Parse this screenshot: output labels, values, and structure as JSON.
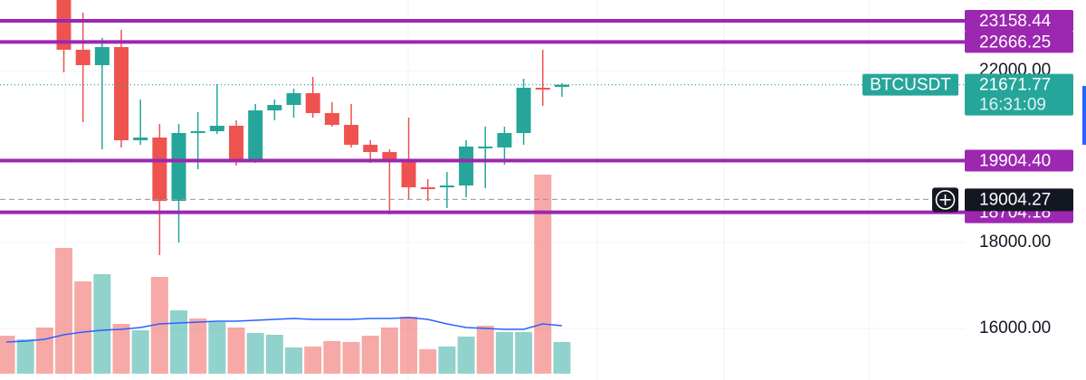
{
  "chart_data": {
    "type": "candlestick",
    "symbol": "BTCUSDT",
    "last_price": 21671.77,
    "countdown": "16:31:09",
    "crosshair_price": 19004.27,
    "categories": [
      null,
      null,
      null,
      null,
      null,
      null,
      null,
      null,
      null,
      null,
      null,
      null,
      null,
      null,
      null,
      null,
      null,
      null,
      null,
      null,
      null,
      null,
      null,
      null,
      null,
      null,
      null,
      null,
      null,
      null
    ],
    "open": [
      null,
      null,
      null,
      23852,
      22484,
      22126,
      22547,
      20379,
      20442,
      18968,
      20547,
      20589,
      20716,
      19916,
      21074,
      21200,
      21474,
      21011,
      20737,
      20274,
      20105,
      19916,
      19284,
      19284,
      19326,
      20210,
      20210,
      20547,
      21600,
      21620
    ],
    "high": [
      null,
      null,
      null,
      23900,
      23347,
      22758,
      22947,
      21326,
      20758,
      20758,
      21032,
      21684,
      20842,
      21221,
      21326,
      21579,
      21853,
      21263,
      21221,
      20379,
      20168,
      20905,
      19474,
      19642,
      20379,
      20695,
      20695,
      21810,
      22484,
      21705
    ],
    "low": [
      null,
      null,
      null,
      21958,
      20800,
      20168,
      20210,
      20274,
      17705,
      18000,
      19705,
      20526,
      19789,
      19853,
      20842,
      20905,
      20905,
      20695,
      20210,
      19853,
      18653,
      19011,
      18968,
      18800,
      19053,
      19263,
      19811,
      20274,
      21179,
      21390
    ],
    "close": [
      null,
      null,
      null,
      22484,
      22126,
      22547,
      20379,
      20442,
      18968,
      20547,
      20589,
      20716,
      19916,
      21074,
      21200,
      21474,
      21011,
      20737,
      20274,
      20105,
      19916,
      19284,
      19242,
      19326,
      20232,
      20232,
      20547,
      21600,
      21590,
      21671.77
    ],
    "volume": [
      42,
      38,
      51,
      139,
      102,
      110,
      55,
      48,
      107,
      70,
      61,
      57,
      51,
      45,
      43,
      29,
      30,
      36,
      35,
      42,
      51,
      63,
      27,
      30,
      41,
      53,
      46,
      46,
      220,
      35
    ],
    "volume_up": [
      false,
      true,
      false,
      false,
      false,
      true,
      false,
      true,
      false,
      true,
      false,
      true,
      false,
      true,
      true,
      true,
      false,
      false,
      false,
      false,
      false,
      false,
      false,
      true,
      true,
      false,
      true,
      true,
      false,
      true
    ],
    "volume_ma": [
      35,
      36,
      38,
      43,
      46,
      48,
      49,
      51,
      55,
      56,
      57,
      58,
      58,
      59,
      60,
      61,
      60,
      60,
      60,
      61,
      61,
      62,
      60,
      55,
      51,
      50,
      49,
      49,
      55,
      53
    ],
    "volume_lim": [
      0,
      413
    ],
    "ylim": [
      14801,
      23642
    ],
    "yticks": [
      {
        "value": 16000,
        "label": "16000.00"
      },
      {
        "value": 18000,
        "label": "18000.00"
      },
      {
        "value": 22000,
        "label": "22000.00"
      }
    ],
    "levels": [
      23158.44,
      22666.25,
      {
        "value": 19904.4,
        "label": "19904.40"
      },
      18704.18
    ],
    "up_color": "#26a69a",
    "down_color": "#ef5350",
    "level_color": "#9c27b0",
    "ma_color": "#2962ff",
    "grid": true
  }
}
